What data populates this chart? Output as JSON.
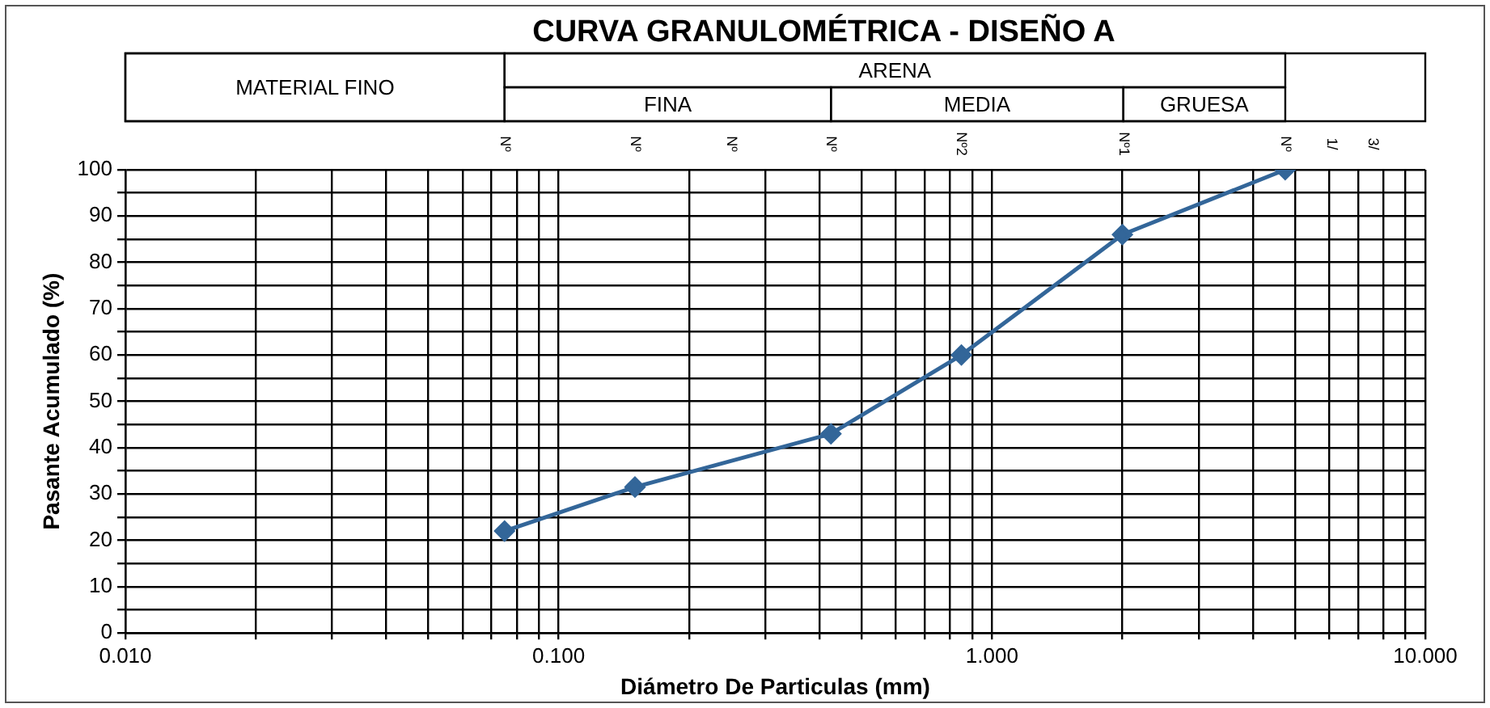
{
  "chart_data": {
    "type": "line",
    "title": "CURVA GRANULOMÉTRICA - DISEÑO A",
    "xlabel": "Diámetro De Particulas (mm)",
    "ylabel": "Pasante Acumulado (%)",
    "log": "x",
    "grid": true,
    "marker": "diamond",
    "line_style": "solid",
    "legend": false,
    "x": [
      0.075,
      0.15,
      0.425,
      0.85,
      2,
      4.75
    ],
    "series": [
      {
        "color": "#336699",
        "values": [
          22,
          31.5,
          43,
          60,
          86,
          100
        ]
      }
    ],
    "xlim": [
      0.01,
      10
    ],
    "xticks": [
      {
        "value": 0.01,
        "label": "0.010"
      },
      {
        "value": 0.02,
        "label": null
      },
      {
        "value": 0.03,
        "label": null
      },
      {
        "value": 0.04,
        "label": null
      },
      {
        "value": 0.05,
        "label": null
      },
      {
        "value": 0.06,
        "label": null
      },
      {
        "value": 0.07,
        "label": null
      },
      {
        "value": 0.08,
        "label": null
      },
      {
        "value": 0.09,
        "label": null
      },
      {
        "value": 0.1,
        "label": "0.100"
      },
      {
        "value": 0.2,
        "label": null
      },
      {
        "value": 0.3,
        "label": null
      },
      {
        "value": 0.4,
        "label": null
      },
      {
        "value": 0.5,
        "label": null
      },
      {
        "value": 0.6,
        "label": null
      },
      {
        "value": 0.7,
        "label": null
      },
      {
        "value": 0.8,
        "label": null
      },
      {
        "value": 0.9,
        "label": null
      },
      {
        "value": 1,
        "label": "1.000"
      },
      {
        "value": 2,
        "label": null
      },
      {
        "value": 3,
        "label": null
      },
      {
        "value": 4,
        "label": null
      },
      {
        "value": 5,
        "label": null
      },
      {
        "value": 6,
        "label": null
      },
      {
        "value": 7,
        "label": null
      },
      {
        "value": 8,
        "label": null
      },
      {
        "value": 9,
        "label": null
      },
      {
        "value": 10,
        "label": "10.000"
      }
    ],
    "ylim": [
      0,
      100
    ],
    "yticks": [
      0,
      {
        "value": 5,
        "label": null
      },
      10,
      {
        "value": 15,
        "label": null
      },
      20,
      {
        "value": 25,
        "label": null
      },
      30,
      {
        "value": 35,
        "label": null
      },
      40,
      {
        "value": 45,
        "label": null
      },
      50,
      {
        "value": 55,
        "label": null
      },
      60,
      {
        "value": 65,
        "label": null
      },
      70,
      {
        "value": 75,
        "label": null
      },
      80,
      {
        "value": 85,
        "label": null
      },
      90,
      {
        "value": 95,
        "label": null
      },
      100
    ],
    "annotations": [
      "MATERIAL FINO",
      "ARENA",
      "FINA",
      "MEDIA",
      "GRUESA",
      "Nº",
      "Nº",
      "Nº",
      "Nº",
      "Nº2",
      "Nº1",
      "Nº",
      "1/",
      "3/"
    ]
  }
}
